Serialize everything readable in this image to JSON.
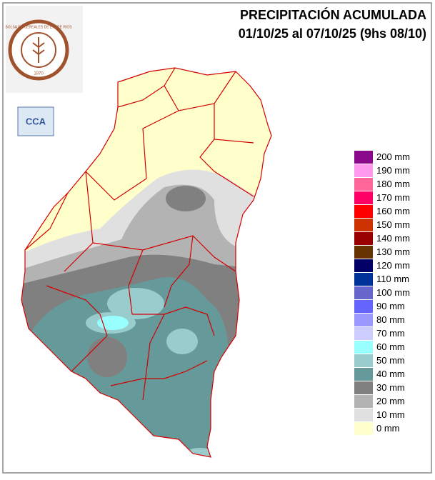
{
  "header": {
    "title": "PRECIPITACIÓN ACUMULADA",
    "subtitle": "01/10/25 al 07/10/25 (9hs 08/10)"
  },
  "logos": {
    "institution": "BOLSA DE CEREALES DE ENTRE RIOS",
    "year": "1970",
    "cca": "CCA"
  },
  "legend": [
    {
      "label": "200 mm",
      "color": "#8b0a8b"
    },
    {
      "label": "190 mm",
      "color": "#ff99ee"
    },
    {
      "label": "180 mm",
      "color": "#ff6699"
    },
    {
      "label": "170 mm",
      "color": "#ff0066"
    },
    {
      "label": "160 mm",
      "color": "#ff0000"
    },
    {
      "label": "150 mm",
      "color": "#cc3300"
    },
    {
      "label": "140 mm",
      "color": "#990000"
    },
    {
      "label": "130 mm",
      "color": "#663300"
    },
    {
      "label": "120 mm",
      "color": "#000066"
    },
    {
      "label": "110 mm",
      "color": "#003399"
    },
    {
      "label": "100 mm",
      "color": "#6666cc"
    },
    {
      "label": "90 mm",
      "color": "#6666ff"
    },
    {
      "label": "80 mm",
      "color": "#9999ff"
    },
    {
      "label": "70 mm",
      "color": "#ccccff"
    },
    {
      "label": "60 mm",
      "color": "#99ffff"
    },
    {
      "label": "50 mm",
      "color": "#99cccc"
    },
    {
      "label": "40 mm",
      "color": "#669999"
    },
    {
      "label": "30 mm",
      "color": "#808080"
    },
    {
      "label": "20 mm",
      "color": "#b3b3b3"
    },
    {
      "label": "10 mm",
      "color": "#e0e0e0"
    },
    {
      "label": "0 mm",
      "color": "#ffffcc"
    }
  ]
}
